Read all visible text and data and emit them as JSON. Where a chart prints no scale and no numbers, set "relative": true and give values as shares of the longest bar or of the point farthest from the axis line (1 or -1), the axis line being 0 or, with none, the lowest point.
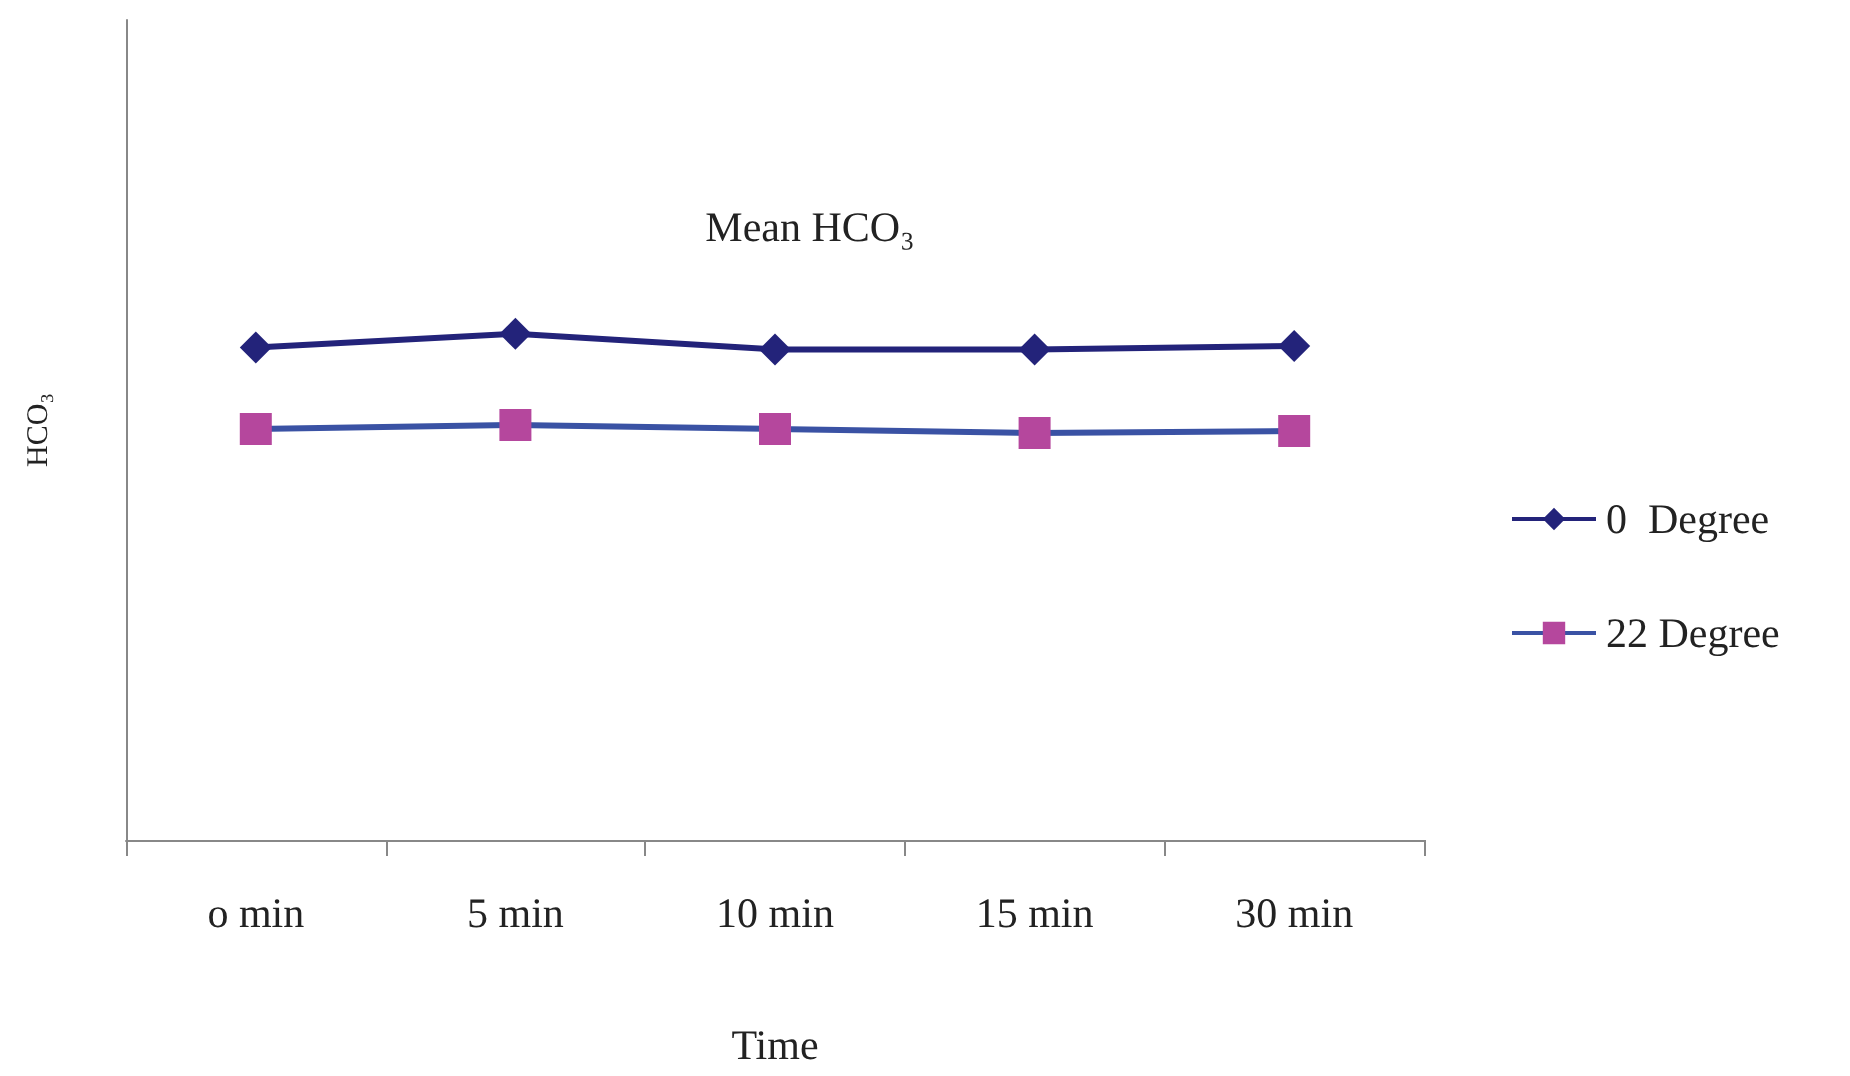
{
  "chart_data": {
    "type": "line",
    "title": "Mean HCO₃",
    "xlabel": "Time",
    "ylabel": "HCO₃",
    "relative": true,
    "categories": [
      "o min",
      "5 min",
      "10 min",
      "15 min",
      "30 min"
    ],
    "series": [
      {
        "name": "0  Degree",
        "color": "#23237a",
        "marker": "diamond",
        "values": [
          0.973,
          1,
          0.969,
          0.969,
          0.976
        ]
      },
      {
        "name": "22 Degree",
        "color": "#3a52a4",
        "colors": [
          "#b5479d",
          "#b5479d",
          "#b5479d",
          "#b5479d",
          "#b5479d"
        ],
        "marker": "square",
        "values": [
          0.812,
          0.82,
          0.812,
          0.804,
          0.808
        ]
      }
    ],
    "grid": false,
    "legend": "right"
  }
}
